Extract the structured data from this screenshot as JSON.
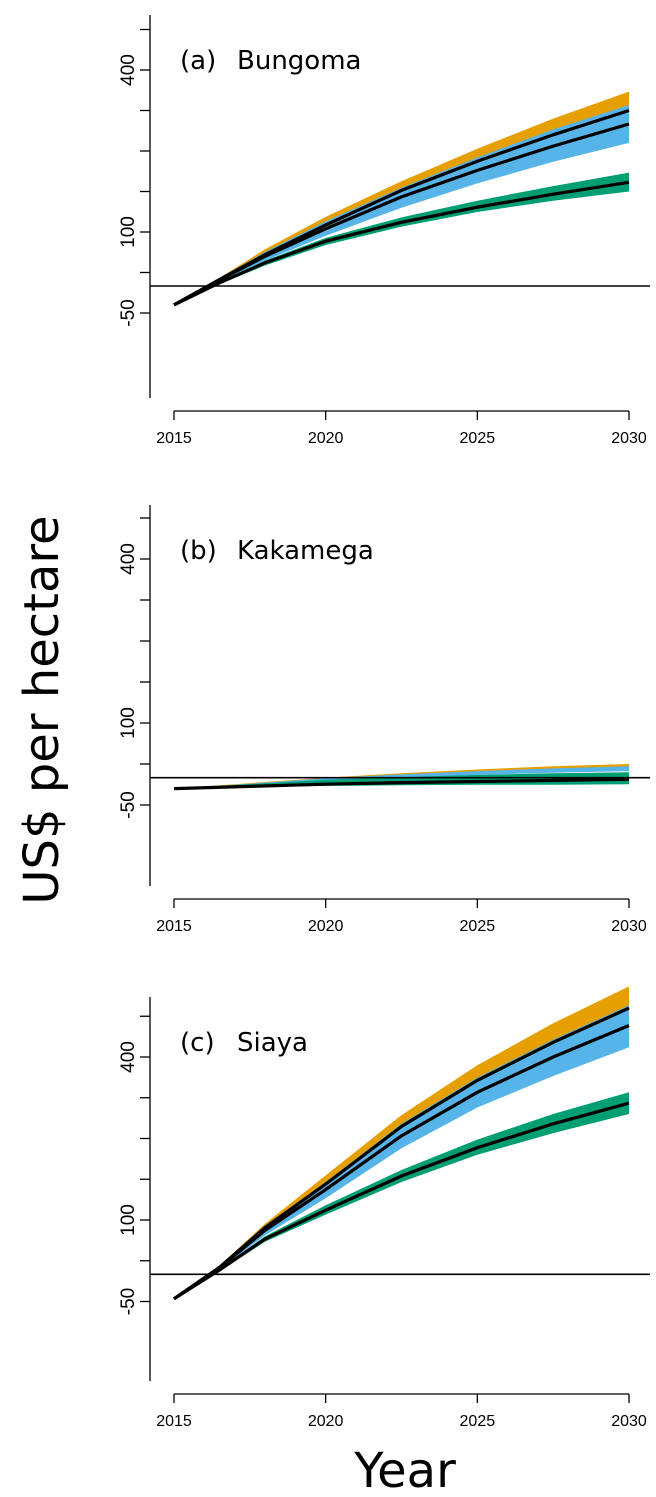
{
  "ylabel": "US$ per hectare",
  "xlabel": "Year",
  "colors": {
    "band_high": "#E69F00",
    "band_mid": "#56B4E9",
    "band_low": "#009E73",
    "line": "#000000"
  },
  "chart_data": [
    {
      "type": "area",
      "panel_label": "(a)",
      "title": "Bungoma",
      "xlim": [
        2015,
        2030
      ],
      "x_ticks": [
        "2015",
        "2020",
        "2025",
        "2030"
      ],
      "y_ticks": [
        "-50",
        "100",
        "400"
      ],
      "reference_line": 0,
      "x": [
        2015,
        2016.5,
        2018,
        2020,
        2022.5,
        2025,
        2027.5,
        2030
      ],
      "series": [
        {
          "color": "#E69F00",
          "lower": [
            -35,
            9,
            50,
            100,
            155,
            205,
            250,
            290
          ],
          "upper": [
            -35,
            15,
            68,
            128,
            194,
            254,
            310,
            360
          ]
        },
        {
          "color": "#56B4E9",
          "lower": [
            -35,
            8,
            47,
            93,
            145,
            190,
            230,
            265
          ],
          "upper": [
            -35,
            14,
            63,
            120,
            182,
            238,
            290,
            335
          ]
        },
        {
          "color": "#009E73",
          "lower": [
            -35,
            3,
            38,
            76,
            110,
            137,
            158,
            175
          ],
          "upper": [
            -35,
            7,
            47,
            89,
            127,
            158,
            185,
            210
          ]
        }
      ],
      "lines": [
        {
          "values": [
            -35,
            12,
            58,
            113,
            177,
            231,
            280,
            325
          ]
        },
        {
          "values": [
            -35,
            11,
            55,
            106,
            165,
            214,
            259,
            300
          ]
        },
        {
          "values": [
            -35,
            6,
            43,
            83,
            118,
            146,
            170,
            192
          ]
        }
      ]
    },
    {
      "type": "area",
      "panel_label": "(b)",
      "title": "Kakamega",
      "xlim": [
        2015,
        2030
      ],
      "x_ticks": [
        "2015",
        "2020",
        "2025",
        "2030"
      ],
      "y_ticks": [
        "-50",
        "100",
        "400"
      ],
      "reference_line": 0,
      "x": [
        2015,
        2017.5,
        2020,
        2022.5,
        2025,
        2027.5,
        2030
      ],
      "series": [
        {
          "color": "#E69F00",
          "lower": [
            -20,
            -12,
            -4,
            3,
            9,
            13,
            17
          ],
          "upper": [
            -20,
            -10,
            0,
            8,
            15,
            21,
            25
          ]
        },
        {
          "color": "#56B4E9",
          "lower": [
            -20,
            -13,
            -6,
            0,
            5,
            9,
            12
          ],
          "upper": [
            -20,
            -11,
            -1,
            6,
            12,
            17,
            21
          ]
        },
        {
          "color": "#009E73",
          "lower": [
            -20,
            -17,
            -15,
            -14,
            -13,
            -13,
            -12
          ],
          "upper": [
            -20,
            -12,
            -4,
            1,
            5,
            8,
            10
          ]
        }
      ],
      "lines": [
        {
          "values": [
            -20,
            -16,
            -12,
            -9,
            -7,
            -5,
            -3
          ]
        }
      ]
    },
    {
      "type": "area",
      "panel_label": "(c)",
      "title": "Siaya",
      "xlim": [
        2015,
        2030
      ],
      "x_ticks": [
        "2015",
        "2020",
        "2025",
        "2030"
      ],
      "y_ticks": [
        "-50",
        "100",
        "400"
      ],
      "reference_line": 0,
      "x": [
        2015,
        2016.5,
        2018,
        2020,
        2022.5,
        2025,
        2027.5,
        2030
      ],
      "series": [
        {
          "color": "#E69F00",
          "lower": [
            -45,
            9,
            77,
            150,
            250,
            328,
            392,
            448
          ],
          "upper": [
            -45,
            16,
            93,
            182,
            293,
            385,
            462,
            530
          ]
        },
        {
          "color": "#56B4E9",
          "lower": [
            -45,
            8,
            72,
            140,
            232,
            307,
            365,
            418
          ],
          "upper": [
            -45,
            15,
            88,
            170,
            277,
            362,
            432,
            495
          ]
        },
        {
          "color": "#009E73",
          "lower": [
            -45,
            5,
            60,
            110,
            170,
            220,
            260,
            295
          ],
          "upper": [
            -45,
            10,
            70,
            127,
            192,
            248,
            295,
            335
          ]
        }
      ],
      "lines": [
        {
          "values": [
            -45,
            13,
            86,
            166,
            272,
            357,
            427,
            490
          ]
        },
        {
          "values": [
            -45,
            12,
            81,
            156,
            255,
            335,
            400,
            458
          ]
        },
        {
          "values": [
            -45,
            8,
            65,
            118,
            181,
            233,
            277,
            315
          ]
        }
      ]
    }
  ]
}
